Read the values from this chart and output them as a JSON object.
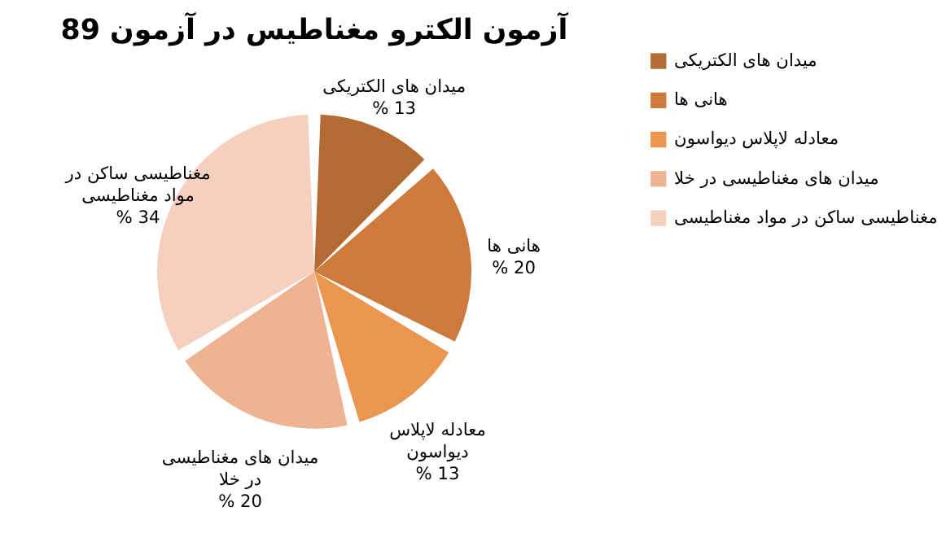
{
  "chart_data": {
    "type": "pie",
    "title": "آزمون الکترو مغناطیس در آزمون 89",
    "categories": [
      "میدان های الکتریکی",
      "هانی ها",
      "معادله لاپلاس دیواسون",
      "میدان های مغناطیسی در خلا",
      "مغناطیسی ساکن در مواد مغناطیسی"
    ],
    "values": [
      13,
      20,
      13,
      20,
      34
    ],
    "value_labels": [
      "% 13",
      "% 20",
      "% 13",
      "% 20",
      "% 34"
    ],
    "colors": [
      "#b36a33",
      "#cd7b3c",
      "#ea9650",
      "#eeb390",
      "#f5d0bf"
    ],
    "legend": "right"
  }
}
